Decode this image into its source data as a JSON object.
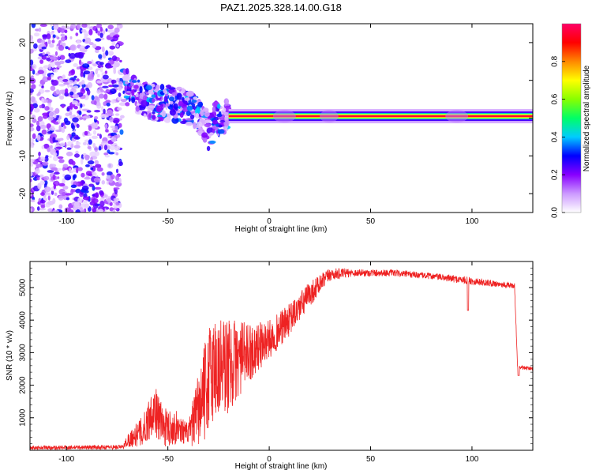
{
  "title": "PAZ1.2025.328.14.00.G18",
  "chart_data": [
    {
      "type": "heatmap",
      "name": "spectrogram",
      "xlabel": "Height of straight line (km)",
      "ylabel": "Frequency (Hz)",
      "xlim": [
        -118,
        130
      ],
      "ylim": [
        -25,
        25
      ],
      "x_ticks": [
        -100,
        -50,
        0,
        50,
        100
      ],
      "y_ticks": [
        -20,
        -10,
        0,
        10,
        20
      ],
      "features": {
        "noise_region_x": [
          -118,
          -73
        ],
        "scatter_region_x": [
          -73,
          -20
        ],
        "signal_band_x": [
          -20,
          130
        ],
        "signal_band_frequency_hz": 0.5,
        "scatter_track": [
          {
            "x": -72,
            "y": 9
          },
          {
            "x": -68,
            "y": 7
          },
          {
            "x": -64,
            "y": 5.5
          },
          {
            "x": -60,
            "y": 4.5
          },
          {
            "x": -55,
            "y": 4
          },
          {
            "x": -50,
            "y": 4
          },
          {
            "x": -45,
            "y": 3.5
          },
          {
            "x": -40,
            "y": 3
          },
          {
            "x": -35,
            "y": 1.5
          },
          {
            "x": -32,
            "y": -1
          },
          {
            "x": -30,
            "y": -4
          },
          {
            "x": -27,
            "y": -1
          },
          {
            "x": -24,
            "y": 0
          },
          {
            "x": -20,
            "y": 0.5
          }
        ]
      },
      "colorbar": {
        "label": "Normalized spectral amplitude",
        "range": [
          0,
          1
        ],
        "ticks": [
          0.0,
          0.2,
          0.4,
          0.6,
          0.8
        ],
        "tick_labels": [
          "0.0",
          "0.2",
          "0.4",
          "0.6",
          "0.8"
        ],
        "colors": [
          "#ffffff",
          "#cc99ff",
          "#8800ff",
          "#0000ff",
          "#00ccff",
          "#00ff66",
          "#88ff00",
          "#ffff00",
          "#ff8800",
          "#ff0000",
          "#ff0066"
        ]
      }
    },
    {
      "type": "line",
      "name": "snr",
      "xlabel": "Height of straight line (km)",
      "ylabel": "SNR (10 * v/v)",
      "xlim": [
        -118,
        130
      ],
      "ylim": [
        0,
        5800
      ],
      "x_ticks": [
        -100,
        -50,
        0,
        50,
        100
      ],
      "y_ticks": [
        1000,
        2000,
        3000,
        4000,
        5000
      ],
      "color": "#ee2222",
      "envelope": [
        {
          "x": -118,
          "y": 80,
          "amp": 60
        },
        {
          "x": -72,
          "y": 100,
          "amp": 70
        },
        {
          "x": -70,
          "y": 300,
          "amp": 200
        },
        {
          "x": -62,
          "y": 600,
          "amp": 500
        },
        {
          "x": -57,
          "y": 1300,
          "amp": 800
        },
        {
          "x": -52,
          "y": 700,
          "amp": 600
        },
        {
          "x": -45,
          "y": 700,
          "amp": 500
        },
        {
          "x": -40,
          "y": 500,
          "amp": 300
        },
        {
          "x": -35,
          "y": 1200,
          "amp": 1200
        },
        {
          "x": -28,
          "y": 2500,
          "amp": 1800
        },
        {
          "x": -20,
          "y": 2600,
          "amp": 1500
        },
        {
          "x": -10,
          "y": 3000,
          "amp": 900
        },
        {
          "x": 0,
          "y": 3400,
          "amp": 600
        },
        {
          "x": 10,
          "y": 4000,
          "amp": 500
        },
        {
          "x": 20,
          "y": 4800,
          "amp": 400
        },
        {
          "x": 30,
          "y": 5400,
          "amp": 200
        },
        {
          "x": 40,
          "y": 5450,
          "amp": 120
        },
        {
          "x": 60,
          "y": 5450,
          "amp": 100
        },
        {
          "x": 80,
          "y": 5350,
          "amp": 100
        },
        {
          "x": 100,
          "y": 5200,
          "amp": 120
        },
        {
          "x": 121,
          "y": 5050,
          "amp": 80
        },
        {
          "x": 122.5,
          "y": 2550,
          "amp": 60
        },
        {
          "x": 130,
          "y": 2500,
          "amp": 60
        }
      ],
      "dips": [
        {
          "x": 98,
          "y": 4300
        },
        {
          "x": 123,
          "y": 2300
        }
      ]
    }
  ]
}
